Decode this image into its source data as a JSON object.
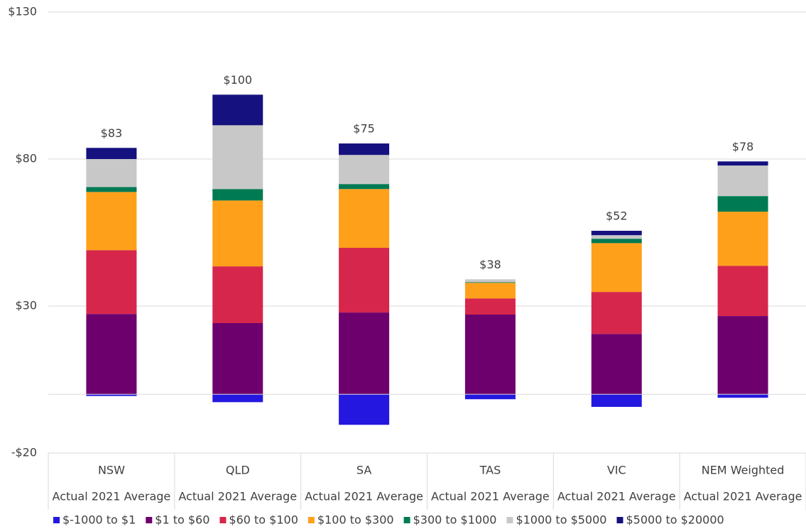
{
  "chart_data": {
    "type": "stacked-bar",
    "categories": [
      "NSW",
      "QLD",
      "SA",
      "TAS",
      "VIC",
      "NEM Weighted"
    ],
    "sublabels": [
      "Actual 2021 Average",
      "Actual 2021 Average",
      "Actual 2021 Average",
      "Actual 2021 Average",
      "Actual 2021 Average",
      "Actual 2021 Average"
    ],
    "series": [
      {
        "name": "$-1000 to $1",
        "color": "#2418e0",
        "values": [
          -0.6,
          -2.7,
          -10.4,
          -1.7,
          -4.3,
          -1.2
        ]
      },
      {
        "name": "$1 to $60",
        "color": "#6e006e",
        "values": [
          27.3,
          24.2,
          27.8,
          27.1,
          20.5,
          26.6
        ]
      },
      {
        "name": "$60 to $100",
        "color": "#d7264b",
        "values": [
          21.7,
          19.3,
          22.0,
          5.5,
          14.3,
          17.1
        ]
      },
      {
        "name": "$100 to $300",
        "color": "#ffa01a",
        "values": [
          19.8,
          22.4,
          20.0,
          5.3,
          16.6,
          18.4
        ]
      },
      {
        "name": "$300 to $1000",
        "color": "#007a53",
        "values": [
          1.7,
          3.9,
          1.7,
          0.2,
          1.5,
          5.3
        ]
      },
      {
        "name": "$1000 to $5000",
        "color": "#c8c8c8",
        "values": [
          9.5,
          21.7,
          9.9,
          1.0,
          1.2,
          10.4
        ]
      },
      {
        "name": "$5000 to $20000",
        "color": "#15117f",
        "values": [
          3.8,
          10.4,
          3.9,
          0,
          1.5,
          1.4
        ]
      }
    ],
    "totals": [
      83,
      100,
      75,
      38,
      52,
      78
    ],
    "value_labels": [
      "$83",
      "$100",
      "$75",
      "$38",
      "$52",
      "$78"
    ],
    "ylim": [
      -20,
      130
    ],
    "yticks": [
      {
        "value": -20,
        "label": "-$20"
      },
      {
        "value": 30,
        "label": "$30"
      },
      {
        "value": 80,
        "label": "$80"
      },
      {
        "value": 130,
        "label": "$130"
      }
    ],
    "grid": true,
    "legend": "bottom"
  }
}
